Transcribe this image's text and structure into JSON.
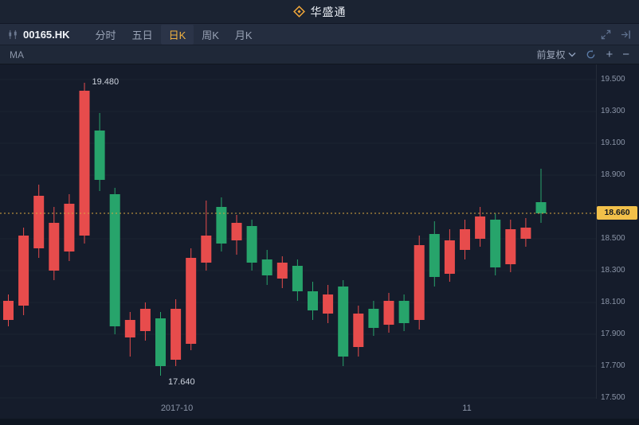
{
  "header": {
    "brand": "华盛通"
  },
  "toolbar": {
    "symbol": "00165.HK",
    "tabs": [
      {
        "label": "分时",
        "active": false
      },
      {
        "label": "五日",
        "active": false
      },
      {
        "label": "日K",
        "active": true
      },
      {
        "label": "周K",
        "active": false
      },
      {
        "label": "月K",
        "active": false
      }
    ]
  },
  "chart_header": {
    "ma_label": "MA",
    "adjust_label": "前复权",
    "zoom_in": "+",
    "zoom_out": "−"
  },
  "chart_data": {
    "type": "candlestick",
    "symbol": "00165.HK",
    "period": "日K",
    "y_axis": {
      "min": 17.5,
      "max": 19.5
    },
    "y_ticks": [
      {
        "value": 19.5,
        "label": "19.500"
      },
      {
        "value": 19.3,
        "label": "19.300"
      },
      {
        "value": 19.1,
        "label": "19.100"
      },
      {
        "value": 18.9,
        "label": "18.900"
      },
      {
        "value": 18.5,
        "label": "18.500"
      },
      {
        "value": 18.3,
        "label": "18.300"
      },
      {
        "value": 18.1,
        "label": "18.100"
      },
      {
        "value": 17.9,
        "label": "17.900"
      },
      {
        "value": 17.7,
        "label": "17.700"
      },
      {
        "value": 17.5,
        "label": "17.500"
      }
    ],
    "x_labels": [
      {
        "label": "2017-10",
        "x": 222
      },
      {
        "label": "11",
        "x": 586
      }
    ],
    "current_price": {
      "value": 18.66,
      "label": "18.660"
    },
    "annotations": [
      {
        "label": "19.480",
        "price": 19.48,
        "candle": 5,
        "position": "above"
      },
      {
        "label": "17.640",
        "price": 17.64,
        "candle": 10,
        "position": "below"
      }
    ],
    "colors": {
      "up": "#e74c4c",
      "down": "#27a46b",
      "accent": "#f2b341",
      "price_line": "#d8a63f"
    },
    "candles": [
      {
        "o": 17.99,
        "c": 18.11,
        "h": 18.15,
        "l": 17.95
      },
      {
        "o": 18.08,
        "c": 18.52,
        "h": 18.57,
        "l": 18.02
      },
      {
        "o": 18.44,
        "c": 18.77,
        "h": 18.84,
        "l": 18.38
      },
      {
        "o": 18.3,
        "c": 18.6,
        "h": 18.7,
        "l": 18.24
      },
      {
        "o": 18.42,
        "c": 18.72,
        "h": 18.78,
        "l": 18.36
      },
      {
        "o": 18.52,
        "c": 19.43,
        "h": 19.48,
        "l": 18.47
      },
      {
        "o": 19.18,
        "c": 18.87,
        "h": 19.29,
        "l": 18.8
      },
      {
        "o": 18.78,
        "c": 17.95,
        "h": 18.82,
        "l": 17.9
      },
      {
        "o": 17.88,
        "c": 17.99,
        "h": 18.04,
        "l": 17.76
      },
      {
        "o": 17.92,
        "c": 18.06,
        "h": 18.1,
        "l": 17.86
      },
      {
        "o": 18.0,
        "c": 17.7,
        "h": 18.04,
        "l": 17.64
      },
      {
        "o": 17.74,
        "c": 18.06,
        "h": 18.12,
        "l": 17.7
      },
      {
        "o": 17.84,
        "c": 18.38,
        "h": 18.44,
        "l": 17.8
      },
      {
        "o": 18.35,
        "c": 18.52,
        "h": 18.74,
        "l": 18.3
      },
      {
        "o": 18.7,
        "c": 18.47,
        "h": 18.76,
        "l": 18.42
      },
      {
        "o": 18.49,
        "c": 18.6,
        "h": 18.65,
        "l": 18.4
      },
      {
        "o": 18.58,
        "c": 18.35,
        "h": 18.62,
        "l": 18.3
      },
      {
        "o": 18.37,
        "c": 18.27,
        "h": 18.43,
        "l": 18.21
      },
      {
        "o": 18.25,
        "c": 18.35,
        "h": 18.39,
        "l": 18.19
      },
      {
        "o": 18.33,
        "c": 18.17,
        "h": 18.37,
        "l": 18.11
      },
      {
        "o": 18.17,
        "c": 18.05,
        "h": 18.23,
        "l": 17.99
      },
      {
        "o": 18.03,
        "c": 18.15,
        "h": 18.21,
        "l": 17.97
      },
      {
        "o": 18.2,
        "c": 17.76,
        "h": 18.24,
        "l": 17.7
      },
      {
        "o": 17.82,
        "c": 18.03,
        "h": 18.08,
        "l": 17.76
      },
      {
        "o": 18.06,
        "c": 17.94,
        "h": 18.11,
        "l": 17.89
      },
      {
        "o": 17.96,
        "c": 18.11,
        "h": 18.16,
        "l": 17.91
      },
      {
        "o": 18.11,
        "c": 17.97,
        "h": 18.15,
        "l": 17.92
      },
      {
        "o": 17.99,
        "c": 18.46,
        "h": 18.52,
        "l": 17.93
      },
      {
        "o": 18.53,
        "c": 18.26,
        "h": 18.61,
        "l": 18.2
      },
      {
        "o": 18.28,
        "c": 18.49,
        "h": 18.56,
        "l": 18.23
      },
      {
        "o": 18.43,
        "c": 18.56,
        "h": 18.62,
        "l": 18.37
      },
      {
        "o": 18.5,
        "c": 18.64,
        "h": 18.7,
        "l": 18.45
      },
      {
        "o": 18.62,
        "c": 18.32,
        "h": 18.66,
        "l": 18.27
      },
      {
        "o": 18.34,
        "c": 18.56,
        "h": 18.62,
        "l": 18.29
      },
      {
        "o": 18.5,
        "c": 18.57,
        "h": 18.63,
        "l": 18.45
      },
      {
        "o": 18.73,
        "c": 18.66,
        "h": 18.94,
        "l": 18.6
      }
    ]
  }
}
